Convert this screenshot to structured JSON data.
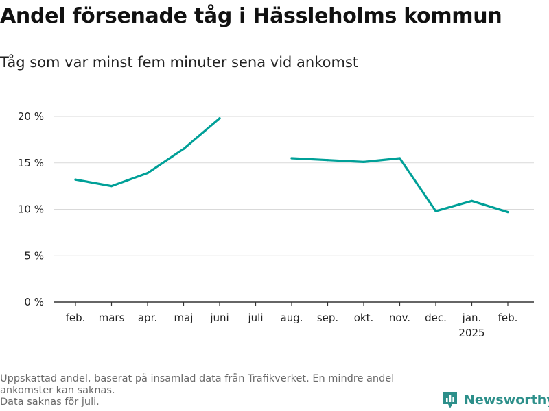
{
  "title": "Andel försenade tåg i Hässleholms kommun",
  "subtitle": "Tåg som var minst fem minuter sena vid ankomst",
  "footnote": {
    "line1": "Uppskattad andel, baserat på insamlad data från Trafikverket. En mindre andel ankomster kan saknas.",
    "line2": "Data saknas för juli."
  },
  "brand": {
    "name": "Newsworthy",
    "color": "#2c8f8a"
  },
  "chart_data": {
    "type": "line",
    "categories": [
      "feb.",
      "mars",
      "apr.",
      "maj",
      "juni",
      "juli",
      "aug.",
      "sep.",
      "okt.",
      "nov.",
      "dec.",
      "jan.",
      "feb."
    ],
    "year_label": "2025",
    "series": [
      {
        "values": [
          13.2,
          12.5,
          13.9,
          16.5,
          19.8,
          null,
          15.5,
          15.3,
          15.1,
          15.5,
          9.8,
          10.9,
          9.7
        ]
      }
    ],
    "ylim": [
      0,
      20
    ],
    "yticks": [
      0,
      5,
      10,
      15,
      20
    ],
    "ytick_labels": [
      "0 %",
      "5 %",
      "10 %",
      "15 %",
      "20 %"
    ],
    "grid": true,
    "line_color": "#00a098"
  }
}
